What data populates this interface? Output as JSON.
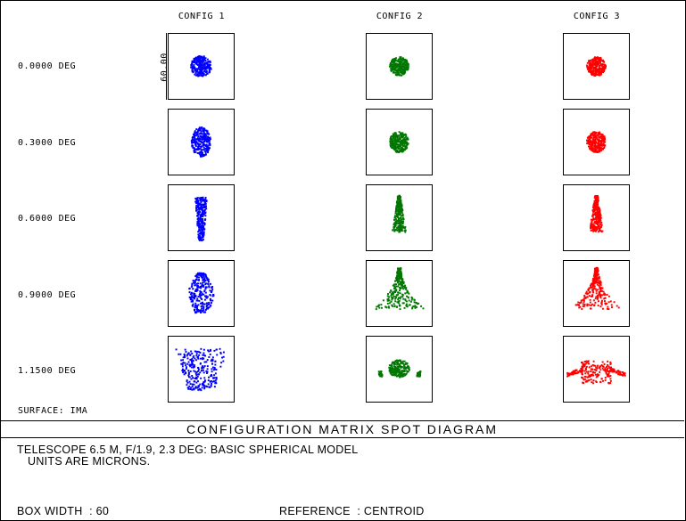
{
  "columns": [
    "CONFIG 1",
    "CONFIG 2",
    "CONFIG 3"
  ],
  "rows": [
    "0.0000 DEG",
    "0.3000 DEG",
    "0.6000 DEG",
    "0.9000 DEG",
    "1.1500 DEG"
  ],
  "scale_label": "60.00",
  "surface_label": "SURFACE: IMA",
  "title": "CONFIGURATION MATRIX SPOT DIAGRAM",
  "description": "TELESCOPE 6.5 M, F/1.9, 2.3 DEG: BASIC SPHERICAL MODEL",
  "units": "UNITS ARE MICRONS.",
  "box_width": "BOX WIDTH  : 60",
  "reference": "REFERENCE  : CENTROID",
  "colors": {
    "config1": "#0000ff",
    "config2": "#007700",
    "config3": "#ff0000"
  }
}
